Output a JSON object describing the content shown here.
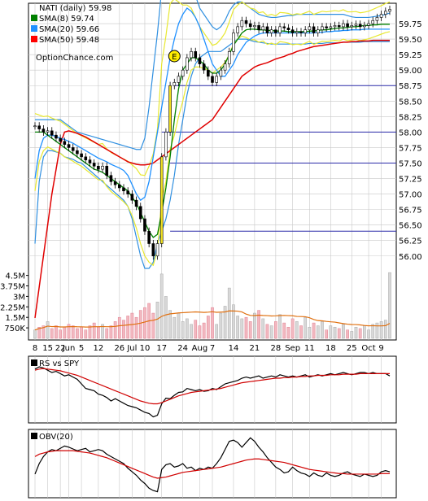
{
  "chart_data": [
    {
      "type": "candlestick",
      "ticker_label": "NATI (daily) 59.98",
      "brand": "OptionChance.com",
      "legend": [
        {
          "label": "SMA(8) 59.74",
          "color": "#008000"
        },
        {
          "label": "SMA(20) 59.66",
          "color": "#1e90ff"
        },
        {
          "label": "SMA(50) 59.48",
          "color": "#ff0000"
        }
      ],
      "earnings_marker": "E",
      "ylim": [
        55.8,
        60.0
      ],
      "y_ticks": [
        "59.75",
        "59.50",
        "59.25",
        "59.00",
        "58.75",
        "58.50",
        "58.25",
        "58.00",
        "57.75",
        "57.50",
        "57.25",
        "57.00",
        "56.75",
        "56.50",
        "56.25",
        "56.00"
      ],
      "y_tick_values": [
        59.75,
        59.5,
        59.25,
        59.0,
        58.75,
        58.5,
        58.25,
        58.0,
        57.75,
        57.5,
        57.25,
        57.0,
        56.75,
        56.5,
        56.25,
        56.0
      ],
      "horizontal_levels": [
        58.75,
        58.0,
        57.5,
        56.4
      ],
      "volume_ticks": [
        "4.5M",
        "3.75M",
        "3M",
        "2.25M",
        "1.5M",
        "750K"
      ],
      "volume_tick_values": [
        4.5,
        3.75,
        3.0,
        2.25,
        1.5,
        0.75
      ],
      "x_tick_labels": [
        "8",
        "15",
        "22",
        "Jun",
        "5",
        "12",
        "26",
        "Jul",
        "10",
        "17",
        "24",
        "Aug",
        "7",
        "14",
        "21",
        "28",
        "Sep",
        "11",
        "18",
        "25",
        "Oct",
        "9"
      ],
      "x_tick_index": [
        0,
        3,
        6,
        8,
        11,
        15,
        20,
        23,
        26,
        30,
        35,
        39,
        42,
        47,
        52,
        57,
        61,
        65,
        70,
        75,
        79,
        82
      ],
      "n_days": 85,
      "closes": [
        58.1,
        58.05,
        58.0,
        58.02,
        57.95,
        57.9,
        57.85,
        57.8,
        57.75,
        57.7,
        57.65,
        57.6,
        57.55,
        57.5,
        57.45,
        57.4,
        57.45,
        57.3,
        57.2,
        57.15,
        57.1,
        57.05,
        57.0,
        56.9,
        56.8,
        56.6,
        56.4,
        56.2,
        56.0,
        56.2,
        57.6,
        58.0,
        58.75,
        58.8,
        58.9,
        59.0,
        59.2,
        59.3,
        59.2,
        59.1,
        59.0,
        58.9,
        58.8,
        58.9,
        59.0,
        59.1,
        59.3,
        59.6,
        59.7,
        59.8,
        59.75,
        59.7,
        59.72,
        59.65,
        59.7,
        59.6,
        59.65,
        59.6,
        59.7,
        59.68,
        59.65,
        59.6,
        59.62,
        59.6,
        59.65,
        59.7,
        59.6,
        59.65,
        59.7,
        59.68,
        59.7,
        59.72,
        59.7,
        59.75,
        59.7,
        59.72,
        59.74,
        59.7,
        59.72,
        59.75,
        59.8,
        59.85,
        59.9,
        59.95,
        59.98
      ],
      "volumes_m": [
        0.6,
        0.8,
        0.9,
        1.2,
        0.7,
        0.9,
        0.6,
        0.8,
        1.0,
        0.9,
        0.7,
        0.8,
        0.6,
        0.9,
        1.1,
        0.8,
        1.0,
        0.7,
        0.9,
        1.2,
        1.5,
        1.3,
        1.6,
        1.8,
        1.5,
        2.0,
        2.2,
        2.5,
        1.8,
        2.6,
        4.6,
        3.0,
        2.0,
        1.5,
        1.8,
        1.2,
        1.4,
        1.0,
        1.3,
        0.9,
        1.1,
        1.6,
        2.2,
        1.0,
        1.8,
        2.3,
        3.6,
        2.4,
        1.6,
        1.4,
        1.5,
        1.2,
        1.8,
        2.0,
        1.4,
        1.0,
        0.9,
        1.2,
        1.7,
        1.1,
        0.8,
        1.4,
        1.2,
        0.9,
        1.5,
        0.8,
        1.1,
        0.9,
        1.2,
        0.6,
        0.9,
        0.8,
        0.7,
        1.0,
        0.6,
        0.5,
        0.8,
        0.7,
        0.9,
        0.6,
        1.0,
        1.1,
        1.2,
        1.3,
        4.7
      ],
      "sma8": [
        58.0,
        58.0,
        58.0,
        57.95,
        57.9,
        57.85,
        57.8,
        57.75,
        57.7,
        57.65,
        57.6,
        57.55,
        57.5,
        57.45,
        57.4,
        57.38,
        57.35,
        57.3,
        57.25,
        57.2,
        57.15,
        57.1,
        57.05,
        56.95,
        56.85,
        56.7,
        56.55,
        56.4,
        56.3,
        56.35,
        56.7,
        57.1,
        57.6,
        58.2,
        58.7,
        59.0,
        59.1,
        59.2,
        59.2,
        59.15,
        59.1,
        59.0,
        58.95,
        58.95,
        59.0,
        59.1,
        59.25,
        59.4,
        59.5,
        59.6,
        59.65,
        59.66,
        59.66,
        59.65,
        59.65,
        59.64,
        59.64,
        59.63,
        59.63,
        59.63,
        59.62,
        59.62,
        59.62,
        59.62,
        59.62,
        59.63,
        59.63,
        59.64,
        59.65,
        59.65,
        59.66,
        59.67,
        59.68,
        59.68,
        59.69,
        59.7,
        59.7,
        59.71,
        59.72,
        59.72,
        59.73,
        59.73,
        59.74,
        59.74,
        59.74
      ],
      "sma20": [
        57.25,
        57.7,
        57.9,
        57.95,
        57.95,
        57.93,
        57.9,
        57.88,
        57.85,
        57.82,
        57.78,
        57.74,
        57.7,
        57.66,
        57.62,
        57.58,
        57.55,
        57.52,
        57.48,
        57.45,
        57.42,
        57.38,
        57.3,
        57.15,
        57.0,
        56.9,
        56.95,
        57.2,
        57.6,
        58.0,
        58.4,
        58.8,
        59.2,
        59.5,
        59.75,
        59.9,
        60.0,
        59.95,
        59.85,
        59.7,
        59.5,
        59.3,
        59.1,
        59.0,
        58.9,
        58.9,
        59.0,
        59.1,
        59.25,
        59.35,
        59.45,
        59.5,
        59.55,
        59.58,
        59.6,
        59.6,
        59.6,
        59.6,
        59.6,
        59.6,
        59.6,
        59.6,
        59.6,
        59.6,
        59.6,
        59.6,
        59.6,
        59.61,
        59.61,
        59.62,
        59.62,
        59.63,
        59.63,
        59.64,
        59.64,
        59.65,
        59.65,
        59.65,
        59.66,
        59.66,
        59.66,
        59.66,
        59.66,
        59.66,
        59.66
      ],
      "sma50": [
        55.0,
        55.5,
        56.0,
        56.5,
        57.0,
        57.4,
        57.8,
        58.0,
        58.02,
        58.0,
        57.98,
        57.95,
        57.92,
        57.88,
        57.84,
        57.8,
        57.76,
        57.72,
        57.68,
        57.64,
        57.6,
        57.56,
        57.52,
        57.5,
        57.48,
        57.47,
        57.47,
        57.48,
        57.5,
        57.55,
        57.6,
        57.65,
        57.7,
        57.75,
        57.8,
        57.85,
        57.9,
        57.95,
        58.0,
        58.05,
        58.1,
        58.15,
        58.2,
        58.3,
        58.4,
        58.5,
        58.6,
        58.7,
        58.8,
        58.9,
        58.95,
        59.0,
        59.05,
        59.08,
        59.1,
        59.12,
        59.15,
        59.18,
        59.2,
        59.22,
        59.25,
        59.27,
        59.3,
        59.32,
        59.34,
        59.36,
        59.38,
        59.39,
        59.4,
        59.41,
        59.42,
        59.43,
        59.44,
        59.45,
        59.45,
        59.46,
        59.46,
        59.47,
        59.47,
        59.47,
        59.48,
        59.48,
        59.48,
        59.48,
        59.48
      ],
      "bb_upper": [
        58.2,
        58.2,
        58.2,
        58.2,
        58.2,
        58.2,
        58.2,
        58.15,
        58.1,
        58.05,
        58.0,
        57.98,
        57.96,
        57.94,
        57.92,
        57.9,
        57.88,
        57.86,
        57.84,
        57.82,
        57.8,
        57.78,
        57.76,
        57.74,
        57.72,
        57.72,
        57.9,
        58.4,
        59.0,
        59.6,
        60.3,
        60.8,
        61.1,
        61.2,
        61.0,
        60.8,
        60.6,
        60.4,
        60.2,
        60.0,
        59.9,
        59.8,
        59.7,
        59.65,
        59.7,
        59.8,
        59.95,
        60.05,
        60.1,
        60.1,
        60.05,
        60.0,
        59.95,
        59.9,
        59.88,
        59.86,
        59.85,
        59.85,
        59.86,
        59.87,
        59.88,
        59.88,
        59.9,
        59.9,
        59.9,
        59.9,
        59.9,
        59.9,
        59.9,
        59.9,
        59.9,
        59.9,
        59.9,
        59.9,
        59.88,
        59.86,
        59.85,
        59.85,
        59.85,
        59.85,
        59.86,
        59.87,
        59.88,
        59.9,
        59.92
      ],
      "bb_lower": [
        56.2,
        57.2,
        57.6,
        57.7,
        57.7,
        57.68,
        57.66,
        57.6,
        57.58,
        57.56,
        57.52,
        57.5,
        57.44,
        57.38,
        57.32,
        57.26,
        57.2,
        57.14,
        57.08,
        57.02,
        56.96,
        56.9,
        56.8,
        56.6,
        56.3,
        56.0,
        55.8,
        55.8,
        55.9,
        56.2,
        56.4,
        56.6,
        56.9,
        57.3,
        57.8,
        58.2,
        58.6,
        58.9,
        59.1,
        59.2,
        59.25,
        59.3,
        59.3,
        59.3,
        59.3,
        59.35,
        59.4,
        59.45,
        59.5,
        59.5,
        59.5,
        59.48,
        59.46,
        59.45,
        59.44,
        59.43,
        59.42,
        59.42,
        59.42,
        59.42,
        59.42,
        59.42,
        59.42,
        59.42,
        59.42,
        59.43,
        59.43,
        59.43,
        59.43,
        59.44,
        59.44,
        59.44,
        59.44,
        59.45,
        59.45,
        59.45,
        59.45,
        59.45,
        59.46,
        59.46,
        59.46,
        59.46,
        59.46,
        59.46,
        59.46
      ]
    },
    {
      "type": "line",
      "title": "RS vs SPY",
      "series": [
        {
          "name": "",
          "color": "#000000",
          "values": [
            0.86,
            0.9,
            0.88,
            0.84,
            0.8,
            0.82,
            0.78,
            0.74,
            0.76,
            0.72,
            0.68,
            0.6,
            0.52,
            0.5,
            0.48,
            0.42,
            0.4,
            0.36,
            0.3,
            0.34,
            0.3,
            0.26,
            0.22,
            0.2,
            0.18,
            0.14,
            0.1,
            0.08,
            0.02,
            0.05,
            0.25,
            0.35,
            0.34,
            0.4,
            0.45,
            0.46,
            0.52,
            0.5,
            0.48,
            0.5,
            0.47,
            0.48,
            0.52,
            0.5,
            0.55,
            0.6,
            0.62,
            0.64,
            0.66,
            0.7,
            0.72,
            0.7,
            0.72,
            0.74,
            0.7,
            0.72,
            0.74,
            0.72,
            0.76,
            0.74,
            0.72,
            0.74,
            0.72,
            0.74,
            0.76,
            0.72,
            0.74,
            0.76,
            0.74,
            0.76,
            0.78,
            0.76,
            0.78,
            0.8,
            0.78,
            0.76,
            0.78,
            0.8,
            0.8,
            0.78,
            0.8,
            0.78,
            0.78,
            0.78,
            0.74
          ]
        },
        {
          "name": "",
          "color": "#d00000",
          "values": [
            0.84,
            0.86,
            0.87,
            0.86,
            0.85,
            0.84,
            0.83,
            0.81,
            0.79,
            0.77,
            0.75,
            0.72,
            0.69,
            0.66,
            0.63,
            0.6,
            0.57,
            0.54,
            0.51,
            0.48,
            0.45,
            0.42,
            0.39,
            0.36,
            0.33,
            0.3,
            0.28,
            0.26,
            0.25,
            0.25,
            0.27,
            0.3,
            0.33,
            0.36,
            0.39,
            0.41,
            0.43,
            0.45,
            0.46,
            0.47,
            0.48,
            0.49,
            0.5,
            0.51,
            0.52,
            0.54,
            0.56,
            0.58,
            0.6,
            0.62,
            0.63,
            0.64,
            0.65,
            0.66,
            0.67,
            0.68,
            0.69,
            0.7,
            0.7,
            0.71,
            0.71,
            0.72,
            0.72,
            0.73,
            0.73,
            0.74,
            0.74,
            0.75,
            0.75,
            0.75,
            0.76,
            0.76,
            0.76,
            0.77,
            0.77,
            0.77,
            0.77,
            0.78,
            0.78,
            0.78,
            0.78,
            0.78,
            0.78,
            0.78,
            0.78
          ]
        }
      ]
    },
    {
      "type": "line",
      "title": "OBV(20)",
      "series": [
        {
          "name": "",
          "color": "#000000",
          "values": [
            0.32,
            0.5,
            0.62,
            0.7,
            0.74,
            0.72,
            0.76,
            0.8,
            0.78,
            0.75,
            0.72,
            0.74,
            0.76,
            0.7,
            0.72,
            0.74,
            0.72,
            0.66,
            0.62,
            0.58,
            0.54,
            0.5,
            0.42,
            0.36,
            0.3,
            0.22,
            0.16,
            0.08,
            0.04,
            0.02,
            0.4,
            0.48,
            0.5,
            0.44,
            0.46,
            0.5,
            0.42,
            0.44,
            0.38,
            0.42,
            0.4,
            0.44,
            0.42,
            0.5,
            0.6,
            0.74,
            0.88,
            0.9,
            0.86,
            0.78,
            0.86,
            0.94,
            0.88,
            0.78,
            0.7,
            0.6,
            0.52,
            0.44,
            0.4,
            0.34,
            0.36,
            0.44,
            0.38,
            0.34,
            0.32,
            0.28,
            0.34,
            0.3,
            0.28,
            0.34,
            0.3,
            0.28,
            0.3,
            0.34,
            0.36,
            0.32,
            0.3,
            0.28,
            0.32,
            0.3,
            0.28,
            0.3,
            0.36,
            0.38,
            0.36
          ]
        },
        {
          "name": "",
          "color": "#d00000",
          "values": [
            0.62,
            0.66,
            0.68,
            0.7,
            0.71,
            0.72,
            0.72,
            0.72,
            0.72,
            0.72,
            0.71,
            0.7,
            0.69,
            0.68,
            0.66,
            0.64,
            0.62,
            0.6,
            0.57,
            0.54,
            0.51,
            0.48,
            0.45,
            0.42,
            0.39,
            0.36,
            0.33,
            0.3,
            0.27,
            0.25,
            0.26,
            0.27,
            0.29,
            0.31,
            0.33,
            0.35,
            0.36,
            0.37,
            0.38,
            0.39,
            0.4,
            0.41,
            0.42,
            0.43,
            0.44,
            0.46,
            0.48,
            0.5,
            0.52,
            0.54,
            0.56,
            0.57,
            0.58,
            0.58,
            0.57,
            0.56,
            0.55,
            0.54,
            0.53,
            0.52,
            0.5,
            0.48,
            0.46,
            0.44,
            0.42,
            0.4,
            0.39,
            0.38,
            0.37,
            0.36,
            0.35,
            0.34,
            0.33,
            0.33,
            0.32,
            0.32,
            0.32,
            0.32,
            0.32,
            0.32,
            0.32,
            0.32,
            0.33,
            0.33,
            0.33
          ]
        }
      ]
    }
  ]
}
